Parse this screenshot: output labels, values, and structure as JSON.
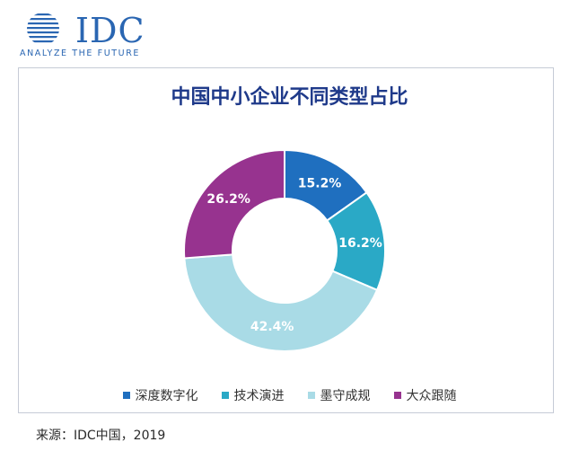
{
  "logo": {
    "brand": "IDC",
    "tagline": "ANALYZE THE FUTURE",
    "color": "#2a66b2"
  },
  "chart_data": {
    "type": "pie",
    "title": "中国中小企业不同类型占比",
    "categories": [
      "深度数字化",
      "技术演进",
      "墨守成规",
      "大众跟随"
    ],
    "values": [
      15.2,
      16.2,
      42.4,
      26.2
    ],
    "value_labels": [
      "15.2%",
      "16.2%",
      "42.4%",
      "26.2%"
    ],
    "colors": [
      "#1f6fbf",
      "#2aa9c6",
      "#a9dbe6",
      "#97338f"
    ],
    "donut": true,
    "legend": "bottom-center"
  },
  "source": "来源：IDC中国，2019"
}
